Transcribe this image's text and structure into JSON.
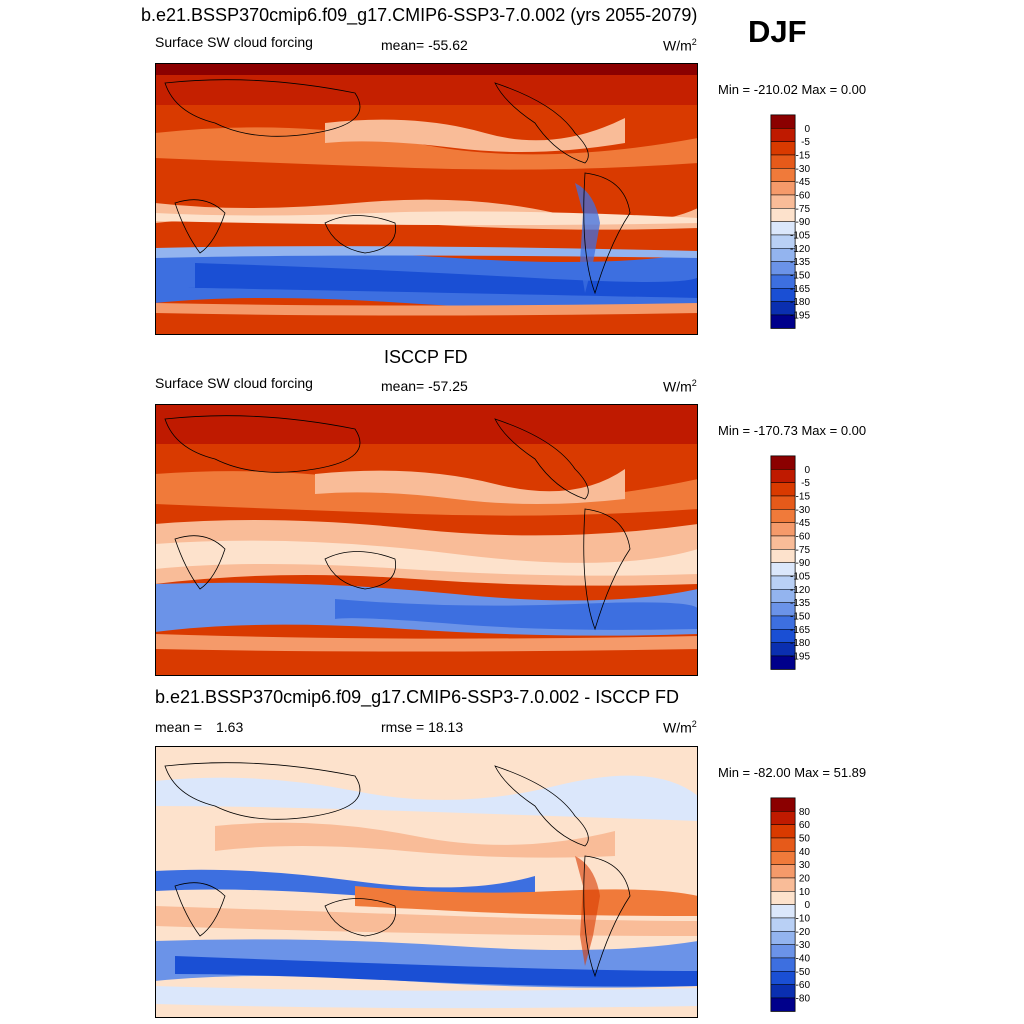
{
  "figure": {
    "title": "b.e21.BSSP370cmip6.f09_g17.CMIP6-SSP3-7.0.002 (yrs 2055-2079)",
    "season": "DJF"
  },
  "panels": [
    {
      "id": "model",
      "title": "",
      "subtitle": "Surface SW cloud forcing",
      "stat_label": "mean=",
      "stat_value": "-55.62",
      "unit": "W/m",
      "unit_sup": "2",
      "min_max": "Min = -210.02 Max =   0.00"
    },
    {
      "id": "obs",
      "title": "ISCCP FD",
      "subtitle": "Surface SW cloud forcing",
      "stat_label": "mean=",
      "stat_value": "-57.25",
      "unit": "W/m",
      "unit_sup": "2",
      "min_max": "Min = -170.73 Max =   0.00"
    },
    {
      "id": "diff",
      "title": "b.e21.BSSP370cmip6.f09_g17.CMIP6-SSP3-7.0.002 - ISCCP FD",
      "mean_label": "mean =",
      "mean_value": "1.63",
      "rmse_label": "rmse =",
      "rmse_value": "18.13",
      "unit": "W/m",
      "unit_sup": "2",
      "min_max": "Min = -82.00 Max =  51.89"
    }
  ],
  "chart_data": [
    {
      "type": "heatmap",
      "name": "model",
      "colorbar_levels": [
        "0",
        "-5",
        "-15",
        "-30",
        "-45",
        "-60",
        "-75",
        "-90",
        "-105",
        "-120",
        "-135",
        "-150",
        "-165",
        "-180",
        "-195"
      ],
      "colorbar_colors": [
        "#8b0000",
        "#bf1a00",
        "#d93a00",
        "#e65a1a",
        "#f07a3a",
        "#f59a6a",
        "#f9bc98",
        "#fde2cc",
        "#dbe7fb",
        "#b9d0f5",
        "#93b4ef",
        "#6b93e8",
        "#3d6fe0",
        "#1a4fd4",
        "#0a2fb0",
        "#00008b"
      ],
      "value_range": [
        -210.02,
        0.0
      ],
      "mean": -55.62
    },
    {
      "type": "heatmap",
      "name": "obs",
      "colorbar_levels": [
        "0",
        "-5",
        "-15",
        "-30",
        "-45",
        "-60",
        "-75",
        "-90",
        "-105",
        "-120",
        "-135",
        "-150",
        "-165",
        "-180",
        "-195"
      ],
      "colorbar_colors": [
        "#8b0000",
        "#bf1a00",
        "#d93a00",
        "#e65a1a",
        "#f07a3a",
        "#f59a6a",
        "#f9bc98",
        "#fde2cc",
        "#dbe7fb",
        "#b9d0f5",
        "#93b4ef",
        "#6b93e8",
        "#3d6fe0",
        "#1a4fd4",
        "#0a2fb0",
        "#00008b"
      ],
      "value_range": [
        -170.73,
        0.0
      ],
      "mean": -57.25
    },
    {
      "type": "heatmap",
      "name": "diff",
      "colorbar_levels": [
        "80",
        "60",
        "50",
        "40",
        "30",
        "20",
        "10",
        "0",
        "-10",
        "-20",
        "-30",
        "-40",
        "-50",
        "-60",
        "-80"
      ],
      "colorbar_colors": [
        "#8b0000",
        "#bf1a00",
        "#d93a00",
        "#e65a1a",
        "#f07a3a",
        "#f59a6a",
        "#f9bc98",
        "#fde2cc",
        "#dbe7fb",
        "#b9d0f5",
        "#93b4ef",
        "#6b93e8",
        "#3d6fe0",
        "#1a4fd4",
        "#0a2fb0",
        "#00008b"
      ],
      "value_range": [
        -82.0,
        51.89
      ],
      "mean": 1.63,
      "rmse": 18.13
    }
  ]
}
